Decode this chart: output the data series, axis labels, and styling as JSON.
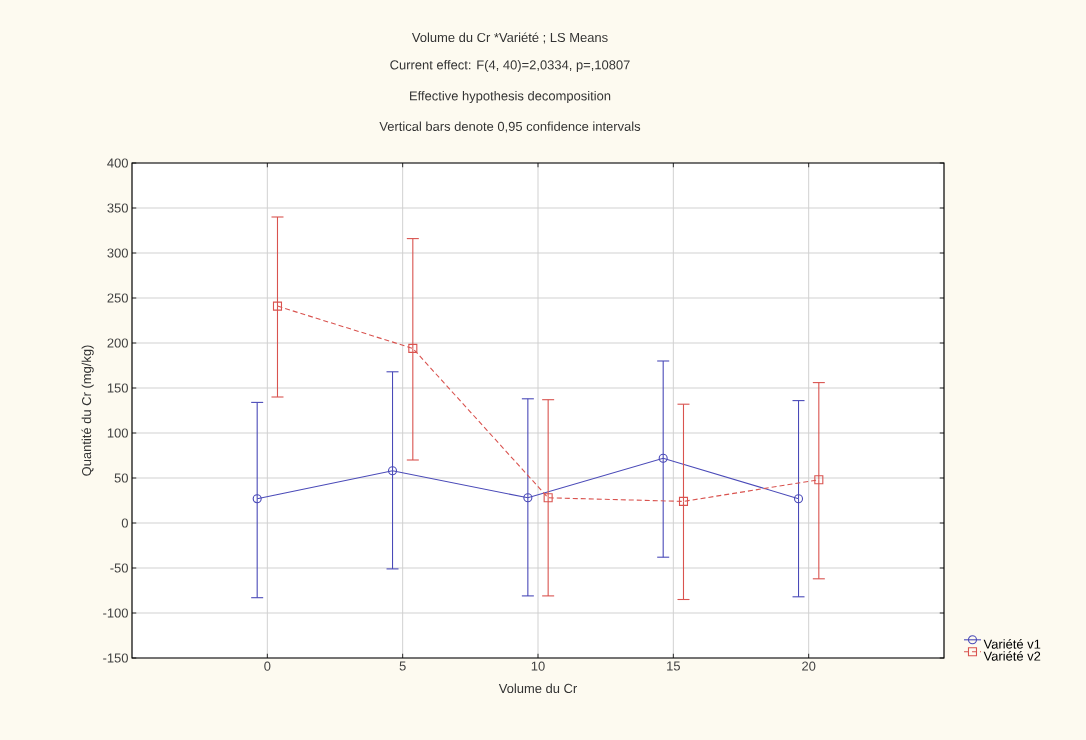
{
  "chart_data": {
    "type": "line",
    "title": "Volume du Cr *Variété ; LS Means",
    "subtitle": "Current effect: F(4, 40)=2,0334, p=,10807",
    "annotations": [
      "Effective hypothesis decomposition",
      "Vertical bars denote 0,95 confidence intervals"
    ],
    "xlabel": "Volume du Cr",
    "ylabel": "Quantité du Cr (mg/kg)",
    "categories": [
      "0",
      "5",
      "10",
      "15",
      "20"
    ],
    "series": [
      {
        "name": "Variété v1",
        "color": "#4a4ab8",
        "marker": "circle",
        "line_style": "solid",
        "values": [
          27,
          58,
          28,
          72,
          27
        ],
        "errors": [
          [
            -83,
            134
          ],
          [
            -51,
            168
          ],
          [
            -81,
            138
          ],
          [
            -38,
            180
          ],
          [
            -82,
            136
          ]
        ]
      },
      {
        "name": "Variété v2",
        "color": "#d9534f",
        "marker": "square",
        "line_style": "dashed",
        "values": [
          241,
          194,
          28,
          24,
          48
        ],
        "errors": [
          [
            140,
            340
          ],
          [
            70,
            316
          ],
          [
            -81,
            137
          ],
          [
            -85,
            132
          ],
          [
            -62,
            156
          ]
        ]
      }
    ],
    "ylim": [
      -150,
      400
    ],
    "yticks": [
      -150,
      -100,
      -50,
      0,
      50,
      100,
      150,
      200,
      250,
      300,
      350,
      400
    ],
    "grid": true,
    "legend": "bottom right"
  }
}
